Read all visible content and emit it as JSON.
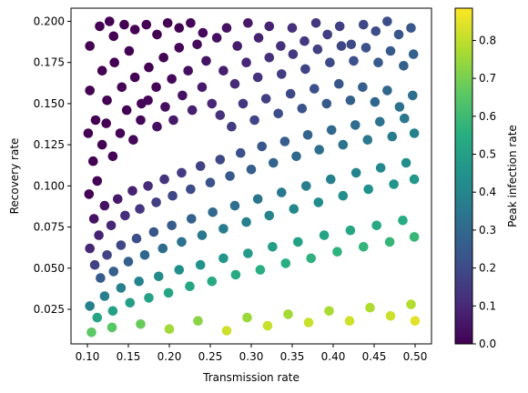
{
  "chart_data": {
    "type": "scatter",
    "title": "",
    "xlabel": "Transmission rate",
    "ylabel": "Recovery rate",
    "xlim": [
      0.08,
      0.52
    ],
    "ylim": [
      0.004,
      0.208
    ],
    "xticks": [
      0.1,
      0.15,
      0.2,
      0.25,
      0.3,
      0.35,
      0.4,
      0.45,
      0.5
    ],
    "xtick_labels": [
      "0.10",
      "0.15",
      "0.20",
      "0.25",
      "0.30",
      "0.35",
      "0.40",
      "0.45",
      "0.50"
    ],
    "yticks": [
      0.025,
      0.05,
      0.075,
      0.1,
      0.125,
      0.15,
      0.175,
      0.2
    ],
    "ytick_labels": [
      "0.025",
      "0.050",
      "0.075",
      "0.100",
      "0.125",
      "0.150",
      "0.175",
      "0.200"
    ],
    "grid": false,
    "colormap": "viridis",
    "colorbar": {
      "label": "Peak infection rate",
      "range": [
        0.0,
        0.885
      ],
      "ticks": [
        0.0,
        0.1,
        0.2,
        0.3,
        0.4,
        0.5,
        0.6,
        0.7,
        0.8
      ],
      "tick_labels": [
        "0.0",
        "0.1",
        "0.2",
        "0.3",
        "0.4",
        "0.5",
        "0.6",
        "0.7",
        "0.8"
      ]
    },
    "color_encoding": "peak infection rate per point (c)",
    "points": [
      [
        0.103,
        0.185
      ],
      [
        0.115,
        0.197
      ],
      [
        0.127,
        0.2
      ],
      [
        0.132,
        0.191
      ],
      [
        0.145,
        0.198
      ],
      [
        0.158,
        0.195
      ],
      [
        0.172,
        0.198
      ],
      [
        0.185,
        0.192
      ],
      [
        0.198,
        0.199
      ],
      [
        0.212,
        0.196
      ],
      [
        0.226,
        0.199
      ],
      [
        0.241,
        0.193
      ],
      [
        0.103,
        0.158
      ],
      [
        0.11,
        0.14
      ],
      [
        0.118,
        0.17
      ],
      [
        0.124,
        0.152
      ],
      [
        0.133,
        0.175
      ],
      [
        0.142,
        0.16
      ],
      [
        0.151,
        0.182
      ],
      [
        0.158,
        0.166
      ],
      [
        0.166,
        0.15
      ],
      [
        0.175,
        0.172
      ],
      [
        0.184,
        0.16
      ],
      [
        0.193,
        0.178
      ],
      [
        0.203,
        0.165
      ],
      [
        0.212,
        0.184
      ],
      [
        0.223,
        0.17
      ],
      [
        0.234,
        0.186
      ],
      [
        0.245,
        0.176
      ],
      [
        0.258,
        0.19
      ],
      [
        0.101,
        0.132
      ],
      [
        0.107,
        0.115
      ],
      [
        0.112,
        0.103
      ],
      [
        0.118,
        0.125
      ],
      [
        0.123,
        0.138
      ],
      [
        0.131,
        0.118
      ],
      [
        0.14,
        0.132
      ],
      [
        0.148,
        0.146
      ],
      [
        0.156,
        0.128
      ],
      [
        0.165,
        0.14
      ],
      [
        0.174,
        0.152
      ],
      [
        0.185,
        0.136
      ],
      [
        0.195,
        0.148
      ],
      [
        0.205,
        0.14
      ],
      [
        0.216,
        0.155
      ],
      [
        0.228,
        0.146
      ],
      [
        0.24,
        0.16
      ],
      [
        0.252,
        0.15
      ],
      [
        0.27,
        0.196
      ],
      [
        0.283,
        0.185
      ],
      [
        0.296,
        0.199
      ],
      [
        0.309,
        0.19
      ],
      [
        0.322,
        0.197
      ],
      [
        0.336,
        0.185
      ],
      [
        0.35,
        0.196
      ],
      [
        0.365,
        0.188
      ],
      [
        0.379,
        0.199
      ],
      [
        0.393,
        0.192
      ],
      [
        0.408,
        0.197
      ],
      [
        0.422,
        0.186
      ],
      [
        0.437,
        0.198
      ],
      [
        0.452,
        0.194
      ],
      [
        0.466,
        0.2
      ],
      [
        0.48,
        0.192
      ],
      [
        0.495,
        0.196
      ],
      [
        0.266,
        0.17
      ],
      [
        0.28,
        0.162
      ],
      [
        0.294,
        0.175
      ],
      [
        0.308,
        0.166
      ],
      [
        0.322,
        0.178
      ],
      [
        0.337,
        0.168
      ],
      [
        0.351,
        0.18
      ],
      [
        0.366,
        0.171
      ],
      [
        0.381,
        0.183
      ],
      [
        0.396,
        0.175
      ],
      [
        0.41,
        0.185
      ],
      [
        0.425,
        0.176
      ],
      [
        0.44,
        0.184
      ],
      [
        0.455,
        0.175
      ],
      [
        0.47,
        0.182
      ],
      [
        0.486,
        0.173
      ],
      [
        0.498,
        0.18
      ],
      [
        0.262,
        0.143
      ],
      [
        0.276,
        0.136
      ],
      [
        0.29,
        0.15
      ],
      [
        0.304,
        0.14
      ],
      [
        0.318,
        0.153
      ],
      [
        0.333,
        0.144
      ],
      [
        0.348,
        0.156
      ],
      [
        0.362,
        0.147
      ],
      [
        0.377,
        0.159
      ],
      [
        0.392,
        0.15
      ],
      [
        0.407,
        0.162
      ],
      [
        0.421,
        0.152
      ],
      [
        0.436,
        0.16
      ],
      [
        0.451,
        0.151
      ],
      [
        0.466,
        0.158
      ],
      [
        0.481,
        0.148
      ],
      [
        0.497,
        0.155
      ],
      [
        0.102,
        0.095
      ],
      [
        0.108,
        0.08
      ],
      [
        0.114,
        0.07
      ],
      [
        0.121,
        0.088
      ],
      [
        0.129,
        0.076
      ],
      [
        0.137,
        0.092
      ],
      [
        0.146,
        0.082
      ],
      [
        0.155,
        0.097
      ],
      [
        0.164,
        0.086
      ],
      [
        0.174,
        0.1
      ],
      [
        0.184,
        0.09
      ],
      [
        0.194,
        0.104
      ],
      [
        0.204,
        0.094
      ],
      [
        0.215,
        0.108
      ],
      [
        0.226,
        0.098
      ],
      [
        0.238,
        0.112
      ],
      [
        0.25,
        0.102
      ],
      [
        0.262,
        0.116
      ],
      [
        0.274,
        0.106
      ],
      [
        0.287,
        0.12
      ],
      [
        0.3,
        0.11
      ],
      [
        0.313,
        0.124
      ],
      [
        0.327,
        0.114
      ],
      [
        0.341,
        0.127
      ],
      [
        0.355,
        0.118
      ],
      [
        0.369,
        0.131
      ],
      [
        0.383,
        0.122
      ],
      [
        0.398,
        0.134
      ],
      [
        0.412,
        0.125
      ],
      [
        0.427,
        0.137
      ],
      [
        0.442,
        0.128
      ],
      [
        0.457,
        0.139
      ],
      [
        0.472,
        0.13
      ],
      [
        0.487,
        0.141
      ],
      [
        0.499,
        0.132
      ],
      [
        0.103,
        0.062
      ],
      [
        0.109,
        0.052
      ],
      [
        0.116,
        0.044
      ],
      [
        0.124,
        0.058
      ],
      [
        0.132,
        0.048
      ],
      [
        0.141,
        0.064
      ],
      [
        0.15,
        0.054
      ],
      [
        0.16,
        0.068
      ],
      [
        0.17,
        0.058
      ],
      [
        0.181,
        0.072
      ],
      [
        0.192,
        0.062
      ],
      [
        0.203,
        0.076
      ],
      [
        0.215,
        0.066
      ],
      [
        0.227,
        0.08
      ],
      [
        0.24,
        0.07
      ],
      [
        0.253,
        0.084
      ],
      [
        0.266,
        0.074
      ],
      [
        0.28,
        0.088
      ],
      [
        0.294,
        0.078
      ],
      [
        0.308,
        0.092
      ],
      [
        0.322,
        0.082
      ],
      [
        0.337,
        0.096
      ],
      [
        0.352,
        0.086
      ],
      [
        0.367,
        0.1
      ],
      [
        0.382,
        0.09
      ],
      [
        0.397,
        0.104
      ],
      [
        0.412,
        0.094
      ],
      [
        0.428,
        0.108
      ],
      [
        0.443,
        0.098
      ],
      [
        0.458,
        0.111
      ],
      [
        0.474,
        0.101
      ],
      [
        0.489,
        0.114
      ],
      [
        0.499,
        0.104
      ],
      [
        0.103,
        0.027
      ],
      [
        0.112,
        0.02
      ],
      [
        0.121,
        0.033
      ],
      [
        0.131,
        0.024
      ],
      [
        0.141,
        0.038
      ],
      [
        0.152,
        0.029
      ],
      [
        0.163,
        0.042
      ],
      [
        0.175,
        0.032
      ],
      [
        0.187,
        0.045
      ],
      [
        0.199,
        0.035
      ],
      [
        0.212,
        0.049
      ],
      [
        0.225,
        0.039
      ],
      [
        0.238,
        0.052
      ],
      [
        0.252,
        0.042
      ],
      [
        0.266,
        0.056
      ],
      [
        0.281,
        0.046
      ],
      [
        0.296,
        0.059
      ],
      [
        0.311,
        0.049
      ],
      [
        0.326,
        0.063
      ],
      [
        0.342,
        0.053
      ],
      [
        0.357,
        0.066
      ],
      [
        0.373,
        0.056
      ],
      [
        0.389,
        0.07
      ],
      [
        0.405,
        0.06
      ],
      [
        0.421,
        0.073
      ],
      [
        0.437,
        0.063
      ],
      [
        0.453,
        0.076
      ],
      [
        0.469,
        0.066
      ],
      [
        0.485,
        0.079
      ],
      [
        0.499,
        0.069
      ],
      [
        0.105,
        0.011
      ],
      [
        0.13,
        0.014
      ],
      [
        0.165,
        0.016
      ],
      [
        0.2,
        0.013
      ],
      [
        0.235,
        0.018
      ],
      [
        0.27,
        0.012
      ],
      [
        0.295,
        0.02
      ],
      [
        0.32,
        0.015
      ],
      [
        0.345,
        0.022
      ],
      [
        0.37,
        0.017
      ],
      [
        0.395,
        0.024
      ],
      [
        0.42,
        0.018
      ],
      [
        0.445,
        0.026
      ],
      [
        0.47,
        0.021
      ],
      [
        0.495,
        0.028
      ],
      [
        0.5,
        0.018
      ]
    ]
  }
}
